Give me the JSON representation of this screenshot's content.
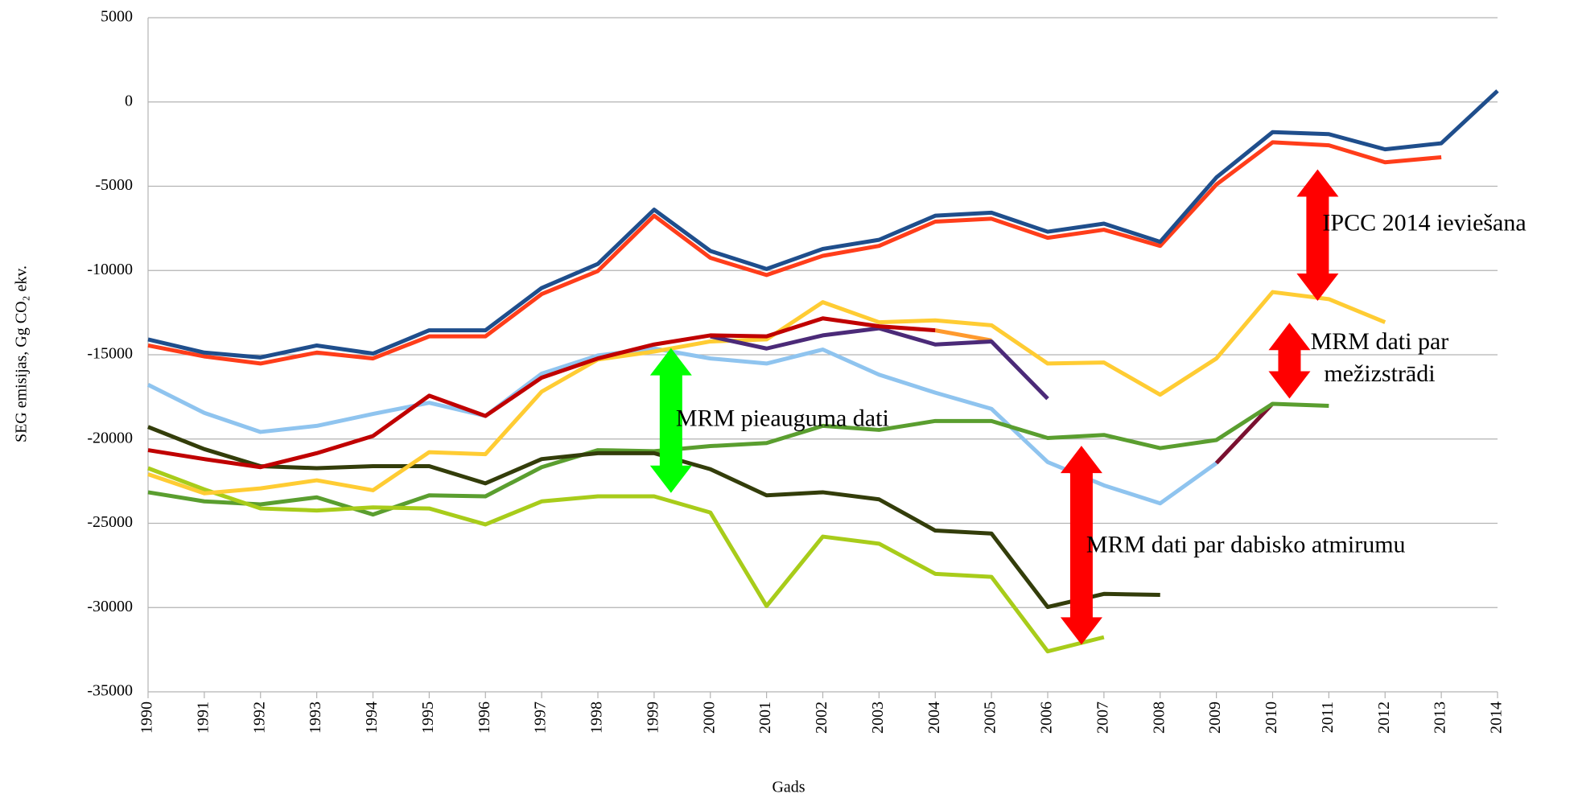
{
  "chart_data": {
    "type": "line",
    "y_label": "SEG emisijas, Gg  CO₂ ekv.",
    "x_label": "Gads",
    "x": [
      1990,
      1991,
      1992,
      1993,
      1994,
      1995,
      1996,
      1997,
      1998,
      1999,
      2000,
      2001,
      2002,
      2003,
      2004,
      2005,
      2006,
      2007,
      2008,
      2009,
      2010,
      2011,
      2012,
      2013,
      2014
    ],
    "xlim": [
      1990,
      2014
    ],
    "xticks": [
      1990,
      1991,
      1992,
      1993,
      1994,
      1995,
      1996,
      1997,
      1998,
      1999,
      2000,
      2001,
      2002,
      2003,
      2004,
      2005,
      2006,
      2007,
      2008,
      2009,
      2010,
      2011,
      2012,
      2013,
      2014
    ],
    "ylim": [
      -35000,
      5000
    ],
    "yticks": [
      -35000,
      -30000,
      -25000,
      -20000,
      -15000,
      -10000,
      -5000,
      0,
      5000
    ],
    "grid": true,
    "series": [
      {
        "color": "#8fc4ef",
        "values": [
          -16780,
          -18450,
          -19580,
          -19220,
          -18510,
          -17850,
          -18630,
          -16120,
          -15040,
          -14630,
          -15220,
          -15520,
          -14690,
          -16180,
          -17250,
          -18210,
          -21370,
          -22750,
          -23820,
          -21430,
          null,
          null,
          null,
          null,
          null
        ]
      },
      {
        "color": "#7a1030",
        "values": [
          null,
          null,
          null,
          null,
          null,
          null,
          null,
          null,
          null,
          null,
          null,
          null,
          null,
          null,
          null,
          null,
          null,
          null,
          null,
          -21430,
          -17900,
          null,
          null,
          null,
          null
        ]
      },
      {
        "color": "#5a9e2f",
        "values": [
          -23160,
          -23700,
          -23880,
          -23460,
          -24480,
          -23340,
          -23400,
          -21670,
          -20660,
          -20720,
          -20420,
          -20240,
          -19220,
          -19460,
          -18930,
          -18930,
          -19940,
          -19760,
          -20540,
          -20060,
          -17910,
          -18030,
          null,
          null,
          null
        ]
      },
      {
        "color": "#a8cc1a",
        "values": [
          -21730,
          -22990,
          -24120,
          -24240,
          -24060,
          -24120,
          -25070,
          -23700,
          -23400,
          -23400,
          -24360,
          -29910,
          -25790,
          -26210,
          -28000,
          -28180,
          -32600,
          -31760,
          null,
          null,
          null,
          null,
          null,
          null,
          null
        ]
      },
      {
        "color": "#333d0a",
        "values": [
          -19280,
          -20600,
          -21610,
          -21730,
          -21610,
          -21610,
          -22630,
          -21190,
          -20840,
          -20840,
          -21790,
          -23340,
          -23160,
          -23580,
          -25430,
          -25610,
          -29970,
          -29190,
          -29250,
          null,
          null,
          null,
          null,
          null,
          null
        ]
      },
      {
        "color": "#ffcc33",
        "values": [
          -22090,
          -23220,
          -22930,
          -22450,
          -23040,
          -20780,
          -20900,
          -17190,
          -15280,
          -14810,
          -14210,
          -14090,
          -11880,
          -13070,
          -12960,
          -13250,
          -15520,
          -15460,
          -17370,
          -15220,
          -11280,
          -11700,
          -13070,
          null,
          null
        ]
      },
      {
        "color": "#ff9a2e",
        "values": [
          null,
          null,
          null,
          null,
          null,
          null,
          null,
          null,
          null,
          null,
          null,
          null,
          null,
          null,
          -13550,
          -14150,
          null,
          null,
          null,
          null,
          null,
          null,
          null,
          null,
          null
        ]
      },
      {
        "color": "#4b2a78",
        "values": [
          null,
          null,
          null,
          null,
          null,
          null,
          null,
          null,
          null,
          null,
          -13910,
          -14630,
          -13850,
          -13430,
          -14390,
          -14210,
          -17610,
          null,
          null,
          null,
          null,
          null,
          null,
          null,
          null
        ]
      },
      {
        "color": "#c00000",
        "values": [
          -20660,
          -21190,
          -21670,
          -20840,
          -19820,
          -17430,
          -18630,
          -16360,
          -15220,
          -14390,
          -13850,
          -13910,
          -12840,
          -13310,
          -13550,
          null,
          null,
          null,
          null,
          null,
          null,
          null,
          null,
          null,
          null
        ]
      },
      {
        "color": "#ff3d1a",
        "values": [
          -14450,
          -15100,
          -15520,
          -14870,
          -15220,
          -13910,
          -13910,
          -11400,
          -10030,
          -6750,
          -9250,
          -10270,
          -9130,
          -8540,
          -7100,
          -6930,
          -8060,
          -7580,
          -8540,
          -4900,
          -2390,
          -2570,
          -3580,
          -3280,
          null
        ]
      },
      {
        "color": "#1f4e8c",
        "values": [
          -14090,
          -14870,
          -15160,
          -14450,
          -14930,
          -13550,
          -13550,
          -11040,
          -9610,
          -6390,
          -8840,
          -9910,
          -8720,
          -8180,
          -6750,
          -6570,
          -7700,
          -7220,
          -8300,
          -4480,
          -1790,
          -1910,
          -2810,
          -2450,
          660
        ]
      }
    ],
    "annotations": [
      {
        "lines": [
          "MRM pieauguma dati"
        ],
        "x": 1999.3,
        "y": [
          -14600,
          -23200
        ],
        "label_y": -18900,
        "color": "#00ff00"
      },
      {
        "lines": [
          "MRM dati par dabisko atmirumu"
        ],
        "x": 2006.6,
        "y": [
          -20400,
          -32200
        ],
        "label_y": -26400,
        "color": "#ff0000"
      },
      {
        "lines": [
          "MRM dati par",
          "mežizstrādi"
        ],
        "x": 2010.3,
        "y": [
          -13100,
          -17600
        ],
        "label_y": -15300,
        "color": "#ff0000"
      },
      {
        "lines": [
          "IPCC 2014 ieviešana"
        ],
        "x": 2010.8,
        "y": [
          -4000,
          -11800
        ],
        "label_y": -7300,
        "color": "#ff0000"
      }
    ]
  }
}
